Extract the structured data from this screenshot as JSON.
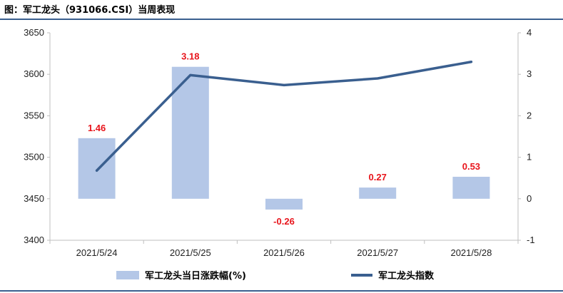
{
  "chart_data": {
    "type": "bar",
    "title": "图：军工龙头（931066.CSI）当周表现",
    "categories": [
      "2021/5/24",
      "2021/5/25",
      "2021/5/26",
      "2021/5/27",
      "2021/5/28"
    ],
    "series": [
      {
        "name": "军工龙头当日涨跌幅(%)",
        "type": "bar",
        "axis": "right",
        "values": [
          1.46,
          3.18,
          -0.26,
          0.27,
          0.53
        ],
        "labels": [
          "1.46",
          "3.18",
          "-0.26",
          "0.27",
          "0.53"
        ],
        "color": "#b4c7e7"
      },
      {
        "name": "军工龙头指数",
        "type": "line",
        "axis": "left",
        "values": [
          3484,
          3599,
          3587,
          3595,
          3615
        ],
        "color": "#3a5f8f"
      }
    ],
    "y_left": {
      "min": 3400,
      "max": 3650,
      "step": 50,
      "ticks": [
        "3400",
        "3450",
        "3500",
        "3550",
        "3600",
        "3650"
      ]
    },
    "y_right": {
      "min": -1,
      "max": 4,
      "step": 1,
      "ticks": [
        "-1",
        "0",
        "1",
        "2",
        "3",
        "4"
      ]
    },
    "grid": false,
    "legend_position": "bottom",
    "label_color": "#e8141b",
    "frame_color": "#3a5f8f"
  }
}
